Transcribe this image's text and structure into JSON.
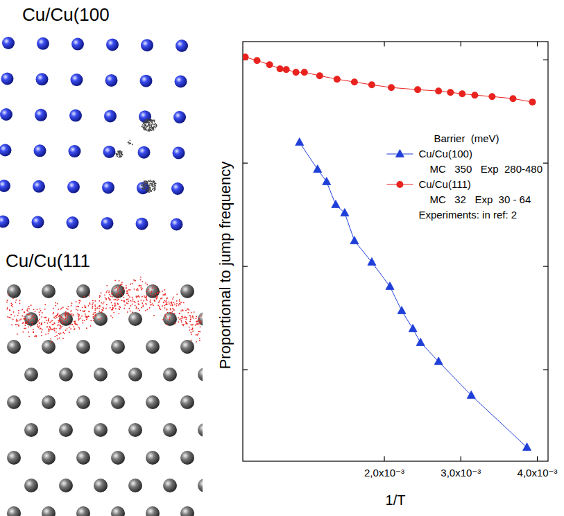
{
  "images": [
    {
      "title": "Cu/Cu(100"
    },
    {
      "title": "Cu/Cu(111"
    }
  ],
  "chart_data": {
    "type": "line",
    "log": "y",
    "tick_labels": "x",
    "x_label": "1/T",
    "y_label": "Proportional to jump frequency",
    "xlim": [
      0.00015,
      0.00414
    ],
    "xticks": [
      {
        "value": 0.002,
        "label": "2,0x10⁻³"
      },
      {
        "value": 0.003,
        "label": "3,0x10⁻³"
      },
      {
        "value": 0.004,
        "label": "4,0x10⁻³"
      }
    ],
    "ylim": [
      0.13,
      1500
    ],
    "yticks": [
      1,
      10,
      100,
      1000
    ],
    "legend": "upper right",
    "legend_title": "Barrier  (meV)",
    "annotation": "Experiments: in ref: 2",
    "series": [
      {
        "name": "Cu/Cu(100)",
        "color": "#1f3fd8",
        "marker": "triangle",
        "line_style": "solid",
        "annotation": "MC   350   Exp  280-480",
        "x": [
          0.000891,
          0.001127,
          0.001245,
          0.001364,
          0.001482,
          0.001609,
          0.001836,
          0.002073,
          0.002227,
          0.002373,
          0.002473,
          0.002709,
          0.003136,
          0.003864
        ],
        "values": [
          159,
          87,
          66,
          39.6,
          32.9,
          17.7,
          11.0,
          6.4,
          3.72,
          2.49,
          1.83,
          1.2,
          0.565,
          0.177
        ]
      },
      {
        "name": "Cu/Cu(111)",
        "color": "#e8231f",
        "marker": "circle",
        "line_style": "solid",
        "annotation": "MC   32   Exp  30 - 64",
        "x": [
          0.000182,
          0.000336,
          0.0005,
          0.000636,
          0.000718,
          0.000845,
          0.000955,
          0.001155,
          0.001382,
          0.001609,
          0.001836,
          0.002091,
          0.002436,
          0.002709,
          0.002864,
          0.003018,
          0.003182,
          0.003409,
          0.003682,
          0.003936
        ],
        "values": [
          1064,
          984,
          898,
          818,
          806,
          757,
          757,
          701,
          649,
          610,
          573,
          539,
          514,
          499,
          484,
          469,
          455,
          441,
          421,
          390
        ]
      }
    ]
  }
}
